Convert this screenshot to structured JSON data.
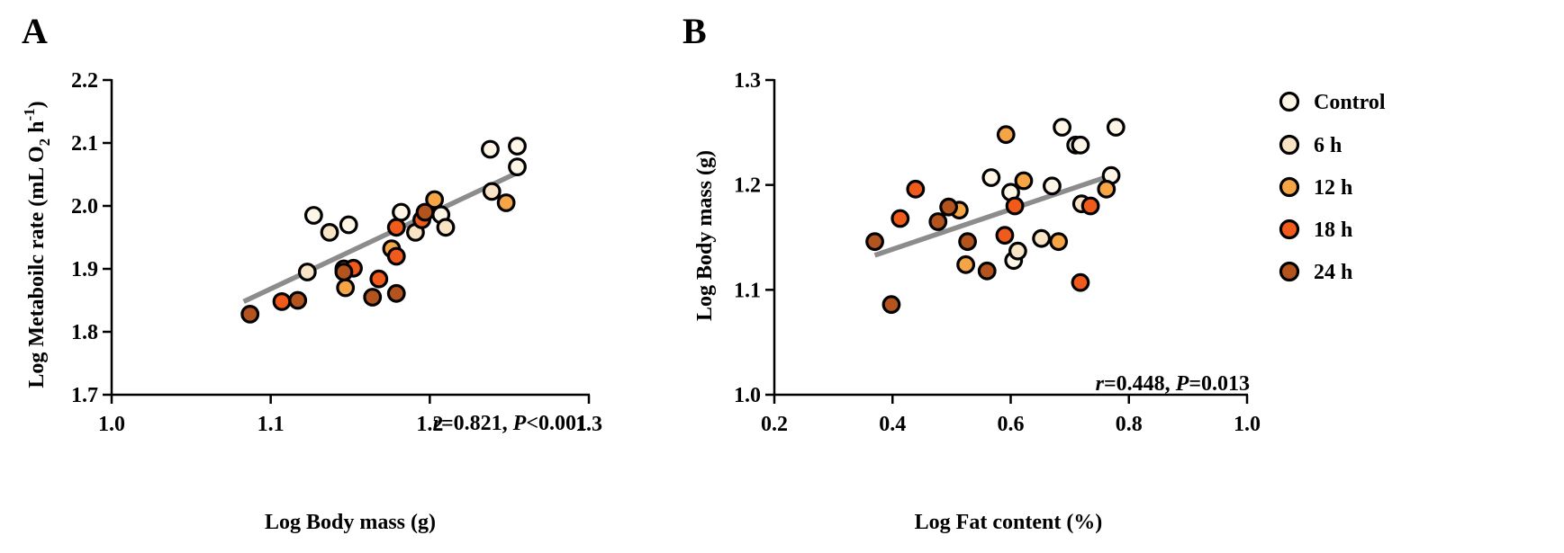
{
  "colors": {
    "Control": "#fdf6e7",
    "6 h": "#f8e3c4",
    "12 h": "#f5a545",
    "18 h": "#f05a1a",
    "24 h": "#b3541f",
    "fit_line": "#8c8c8c",
    "axis": "#000000"
  },
  "legend": {
    "items": [
      "Control",
      "6 h",
      "12 h",
      "18 h",
      "24 h"
    ]
  },
  "chart_data": [
    {
      "type": "scatter",
      "panel_label": "A",
      "title": "",
      "xlabel": "Log Body mass  (g)",
      "ylabel_prefix": "Log Metaboilc rate  (mL O",
      "ylabel_sub": "2",
      "ylabel_mid": " h",
      "ylabel_sup": "-1",
      "ylabel_suffix": ")",
      "xlim": [
        1.0,
        1.3
      ],
      "ylim": [
        1.7,
        2.2
      ],
      "xticks": [
        "1.0",
        "1.1",
        "1.2",
        "1.3"
      ],
      "yticks": [
        "1.7",
        "1.8",
        "1.9",
        "2.0",
        "2.1",
        "2.2"
      ],
      "stat_r_label": "r",
      "stat_r_value": "=0.821, ",
      "stat_p_label": "P",
      "stat_p_value": "<0.001",
      "fit_line": {
        "x": [
          1.083,
          1.257
        ],
        "y": [
          1.848,
          2.055
        ]
      },
      "series": [
        {
          "name": "Control",
          "points": [
            [
              1.127,
              1.985
            ],
            [
              1.149,
              1.97
            ],
            [
              1.207,
              1.986
            ],
            [
              1.238,
              2.09
            ],
            [
              1.255,
              2.095
            ],
            [
              1.255,
              2.062
            ],
            [
              1.182,
              1.99
            ]
          ]
        },
        {
          "name": "6 h",
          "points": [
            [
              1.137,
              1.958
            ],
            [
              1.191,
              1.958
            ],
            [
              1.21,
              1.966
            ],
            [
              1.239,
              2.023
            ],
            [
              1.123,
              1.895
            ]
          ]
        },
        {
          "name": "12 h",
          "points": [
            [
              1.147,
              1.87
            ],
            [
              1.176,
              1.932
            ],
            [
              1.203,
              2.01
            ],
            [
              1.248,
              2.005
            ],
            [
              1.146,
              1.9
            ]
          ]
        },
        {
          "name": "18 h",
          "points": [
            [
              1.107,
              1.848
            ],
            [
              1.152,
              1.901
            ],
            [
              1.168,
              1.884
            ],
            [
              1.179,
              1.92
            ],
            [
              1.195,
              1.978
            ],
            [
              1.179,
              1.966
            ]
          ]
        },
        {
          "name": "24 h",
          "points": [
            [
              1.087,
              1.828
            ],
            [
              1.117,
              1.85
            ],
            [
              1.146,
              1.895
            ],
            [
              1.164,
              1.855
            ],
            [
              1.179,
              1.861
            ],
            [
              1.197,
              1.99
            ]
          ]
        }
      ]
    },
    {
      "type": "scatter",
      "panel_label": "B",
      "title": "",
      "xlabel": "Log Fat content  (%)",
      "ylabel": "Log Body mass (g)",
      "xlim": [
        0.2,
        1.0
      ],
      "ylim": [
        1.0,
        1.3
      ],
      "xticks": [
        "0.2",
        "0.4",
        "0.6",
        "0.8",
        "1.0"
      ],
      "yticks": [
        "1.0",
        "1.1",
        "1.2",
        "1.3"
      ],
      "stat_r_label": "r",
      "stat_r_value": "=0.448, ",
      "stat_p_label": "P",
      "stat_p_value": "=0.013",
      "fit_line": {
        "x": [
          0.37,
          0.775
        ],
        "y": [
          1.133,
          1.21
        ]
      },
      "series": [
        {
          "name": "Control",
          "points": [
            [
              0.567,
              1.207
            ],
            [
              0.6,
              1.193
            ],
            [
              0.67,
              1.199
            ],
            [
              0.687,
              1.255
            ],
            [
              0.71,
              1.238
            ],
            [
              0.718,
              1.238
            ],
            [
              0.778,
              1.255
            ],
            [
              0.605,
              1.128
            ],
            [
              0.77,
              1.209
            ]
          ]
        },
        {
          "name": "6 h",
          "points": [
            [
              0.612,
              1.137
            ],
            [
              0.652,
              1.149
            ],
            [
              0.72,
              1.182
            ]
          ]
        },
        {
          "name": "12 h",
          "points": [
            [
              0.513,
              1.176
            ],
            [
              0.524,
              1.124
            ],
            [
              0.592,
              1.248
            ],
            [
              0.622,
              1.204
            ],
            [
              0.681,
              1.146
            ],
            [
              0.762,
              1.196
            ]
          ]
        },
        {
          "name": "18 h",
          "points": [
            [
              0.413,
              1.168
            ],
            [
              0.439,
              1.196
            ],
            [
              0.59,
              1.152
            ],
            [
              0.607,
              1.18
            ],
            [
              0.718,
              1.107
            ],
            [
              0.735,
              1.18
            ]
          ]
        },
        {
          "name": "24 h",
          "points": [
            [
              0.37,
              1.146
            ],
            [
              0.398,
              1.086
            ],
            [
              0.477,
              1.165
            ],
            [
              0.495,
              1.179
            ],
            [
              0.527,
              1.146
            ],
            [
              0.56,
              1.118
            ]
          ]
        }
      ]
    }
  ]
}
